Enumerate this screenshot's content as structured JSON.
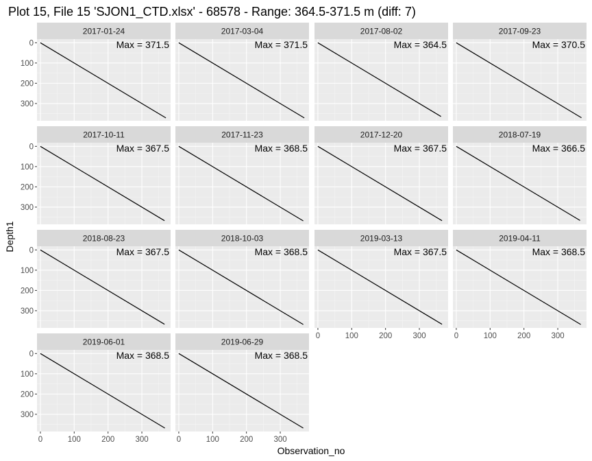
{
  "chart_data": {
    "type": "line",
    "title": "Plot 15, File 15 'SJON1_CTD.xlsx' - 68578 - Range: 364.5-371.5 m (diff: 7)",
    "xlabel": "Observation_no",
    "ylabel": "Depth1",
    "xlim": [
      -10,
      385
    ],
    "ylim": [
      385,
      -18
    ],
    "y_reversed": true,
    "x_ticks": [
      0,
      100,
      200,
      300
    ],
    "y_ticks": [
      0,
      100,
      200,
      300
    ],
    "grid": true,
    "layout": {
      "rows": 4,
      "cols": 4
    },
    "panels": [
      {
        "date": "2017-01-24",
        "label": "Max = 371.5",
        "max": 371.5,
        "x": [
          0,
          371
        ],
        "y": [
          0,
          371
        ]
      },
      {
        "date": "2017-03-04",
        "label": "Max = 371.5",
        "max": 371.5,
        "x": [
          0,
          371
        ],
        "y": [
          0,
          371
        ]
      },
      {
        "date": "2017-08-02",
        "label": "Max = 364.5",
        "max": 364.5,
        "x": [
          0,
          364
        ],
        "y": [
          0,
          364
        ]
      },
      {
        "date": "2017-09-23",
        "label": "Max = 370.5",
        "max": 370.5,
        "x": [
          0,
          370
        ],
        "y": [
          0,
          370
        ]
      },
      {
        "date": "2017-10-11",
        "label": "Max = 367.5",
        "max": 367.5,
        "x": [
          0,
          367
        ],
        "y": [
          0,
          367
        ]
      },
      {
        "date": "2017-11-23",
        "label": "Max = 368.5",
        "max": 368.5,
        "x": [
          0,
          368
        ],
        "y": [
          0,
          368
        ]
      },
      {
        "date": "2017-12-20",
        "label": "Max = 367.5",
        "max": 367.5,
        "x": [
          0,
          367
        ],
        "y": [
          0,
          367
        ]
      },
      {
        "date": "2018-07-19",
        "label": "Max = 366.5",
        "max": 366.5,
        "x": [
          0,
          366
        ],
        "y": [
          0,
          366
        ]
      },
      {
        "date": "2018-08-23",
        "label": "Max = 367.5",
        "max": 367.5,
        "x": [
          0,
          367
        ],
        "y": [
          0,
          367
        ]
      },
      {
        "date": "2018-10-03",
        "label": "Max = 368.5",
        "max": 368.5,
        "x": [
          0,
          368
        ],
        "y": [
          0,
          368
        ]
      },
      {
        "date": "2019-03-13",
        "label": "Max = 367.5",
        "max": 367.5,
        "x": [
          0,
          367
        ],
        "y": [
          0,
          367
        ]
      },
      {
        "date": "2019-04-11",
        "label": "Max = 368.5",
        "max": 368.5,
        "x": [
          0,
          368
        ],
        "y": [
          0,
          368
        ]
      },
      {
        "date": "2019-06-01",
        "label": "Max = 368.5",
        "max": 368.5,
        "x": [
          0,
          368
        ],
        "y": [
          0,
          368
        ]
      },
      {
        "date": "2019-06-29",
        "label": "Max = 368.5",
        "max": 368.5,
        "x": [
          0,
          368
        ],
        "y": [
          0,
          368
        ]
      }
    ]
  }
}
